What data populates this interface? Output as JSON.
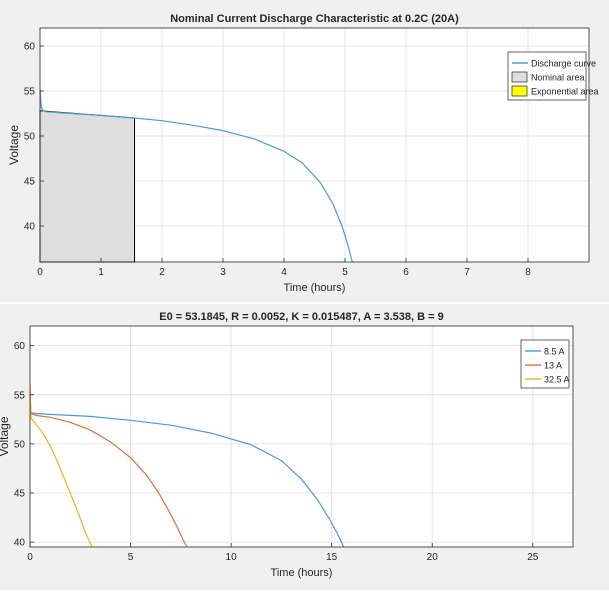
{
  "chart_data": [
    {
      "type": "area",
      "title": "Nominal Current Discharge Characteristic at 0.2C (20A)",
      "xlabel": "Time (hours)",
      "ylabel": "Voltage",
      "xlim": [
        0,
        9
      ],
      "ylim": [
        36,
        62
      ],
      "xticks": [
        0,
        1,
        2,
        3,
        4,
        5,
        6,
        7,
        8
      ],
      "yticks": [
        40,
        45,
        50,
        55,
        60
      ],
      "grid": true,
      "legend_position": "top-right",
      "series": [
        {
          "name": "Discharge curve",
          "kind": "line",
          "color": "#4a9ad4",
          "x": [
            0,
            0.02,
            0.05,
            0.1,
            0.5,
            1.0,
            1.55,
            2.0,
            2.5,
            3.0,
            3.5,
            4.0,
            4.3,
            4.6,
            4.8,
            4.95,
            5.05,
            5.12
          ],
          "y": [
            55.3,
            53.2,
            52.8,
            52.7,
            52.5,
            52.3,
            52.0,
            51.7,
            51.2,
            50.6,
            49.7,
            48.3,
            47.0,
            44.8,
            42.5,
            40.0,
            37.8,
            36.0
          ]
        },
        {
          "name": "Nominal area",
          "kind": "area",
          "color": "#dedede",
          "x_from": 0,
          "x_to": 1.55,
          "y_top_start": 52.8,
          "y_top_end": 52.0
        },
        {
          "name": "Exponential area",
          "kind": "area",
          "color": "#ffff00"
        }
      ]
    },
    {
      "type": "line",
      "title": "E0 = 53.1845, R = 0.0052, K = 0.015487, A = 3.538, B = 9",
      "xlabel": "Time (hours)",
      "ylabel": "Voltage",
      "xlim": [
        0,
        27
      ],
      "ylim": [
        39.5,
        62
      ],
      "xticks": [
        0,
        5,
        10,
        15,
        20,
        25
      ],
      "yticks": [
        40,
        45,
        50,
        55,
        60
      ],
      "grid": true,
      "legend_position": "top-right",
      "series": [
        {
          "name": "8.5 A",
          "color": "#4a9ad4",
          "x": [
            0,
            0.05,
            0.2,
            1,
            3,
            5,
            7,
            9,
            11,
            12.5,
            13.5,
            14.3,
            14.9,
            15.3,
            15.6
          ],
          "y": [
            53.8,
            53.2,
            53.1,
            53.0,
            52.8,
            52.4,
            51.9,
            51.1,
            49.9,
            48.3,
            46.4,
            44.3,
            42.3,
            40.8,
            39.5
          ]
        },
        {
          "name": "13 A",
          "color": "#d9733a",
          "x": [
            0,
            0.05,
            0.3,
            1,
            2,
            3,
            4,
            5,
            5.8,
            6.4,
            6.9,
            7.3,
            7.6,
            7.8
          ],
          "y": [
            54.5,
            53.1,
            52.9,
            52.7,
            52.2,
            51.4,
            50.2,
            48.6,
            46.8,
            45.0,
            43.2,
            41.6,
            40.3,
            39.5
          ]
        },
        {
          "name": "32.5 A",
          "color": "#edb020",
          "x": [
            0,
            0.05,
            0.3,
            0.6,
            1.0,
            1.4,
            1.8,
            2.2,
            2.5,
            2.75,
            2.95,
            3.1
          ],
          "y": [
            56.0,
            52.6,
            52.0,
            51.2,
            49.8,
            48.0,
            46.0,
            44.0,
            42.4,
            41.0,
            40.1,
            39.5
          ]
        }
      ]
    }
  ]
}
